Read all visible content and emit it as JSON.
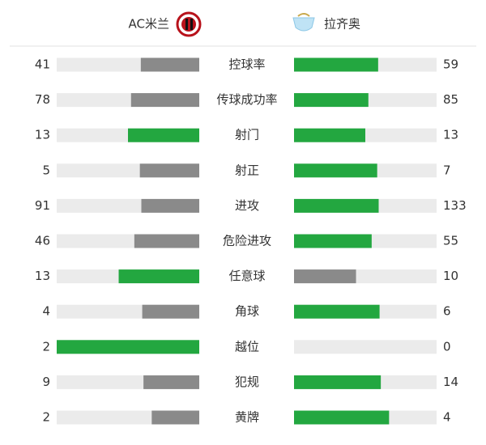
{
  "chart_data": {
    "type": "comparison",
    "categories": [
      "控球率",
      "传球成功率",
      "射门",
      "射正",
      "进攻",
      "危险进攻",
      "任意球",
      "角球",
      "越位",
      "犯规",
      "黄牌"
    ],
    "series": [
      {
        "name": "AC米兰",
        "values": [
          41,
          78,
          13,
          5,
          91,
          46,
          13,
          4,
          2,
          9,
          2
        ]
      },
      {
        "name": "拉齐奥",
        "values": [
          59,
          85,
          13,
          7,
          133,
          55,
          10,
          6,
          0,
          14,
          4
        ]
      }
    ],
    "color": "#23a740",
    "lower_color": "#8a8a8a",
    "track_color": "#ebebeb"
  }
}
